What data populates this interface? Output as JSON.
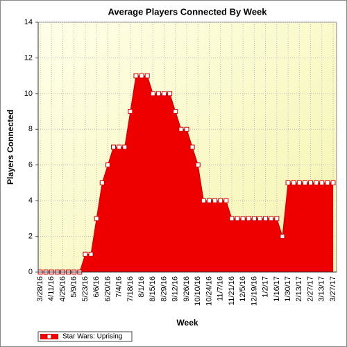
{
  "chart_data": {
    "type": "line",
    "title": "Average Players Connected By Week",
    "x_label": "Week",
    "y_label": "Players Connected",
    "categories": [
      "3/28/16",
      null,
      "4/11/16",
      null,
      "4/25/16",
      null,
      "5/9/16",
      null,
      "5/23/16",
      null,
      "6/6/16",
      null,
      "6/20/16",
      null,
      "7/4/16",
      null,
      "7/18/16",
      null,
      "8/1/16",
      null,
      "8/15/16",
      null,
      "8/29/16",
      null,
      "9/12/16",
      null,
      "9/26/16",
      null,
      "10/10/16",
      null,
      "10/24/16",
      null,
      "11/7/16",
      null,
      "11/21/16",
      null,
      "12/5/16",
      null,
      "12/19/16",
      null,
      "1/2/17",
      null,
      "1/16/17",
      null,
      "1/30/17",
      null,
      "2/13/17",
      null,
      "2/27/17",
      null,
      "3/13/17",
      null,
      "3/27/17"
    ],
    "series": [
      {
        "name": "Star Wars: Uprising",
        "color": "#ee0000",
        "values": [
          0,
          0,
          0,
          0,
          0,
          0,
          0,
          0,
          1,
          1,
          3,
          5,
          6,
          7,
          7,
          7,
          9,
          11,
          11,
          11,
          10,
          10,
          10,
          10,
          9,
          8,
          8,
          7,
          6,
          4,
          4,
          4,
          4,
          4,
          3,
          3,
          3,
          3,
          3,
          3,
          3,
          3,
          3,
          2,
          5,
          5,
          5,
          5,
          5,
          5,
          5,
          5,
          5
        ]
      }
    ],
    "ylim": [
      0,
      14
    ],
    "yticks": [
      0,
      2,
      4,
      6,
      8,
      10,
      12,
      14
    ],
    "grid": true,
    "area": true,
    "legend": "bottom-left"
  }
}
